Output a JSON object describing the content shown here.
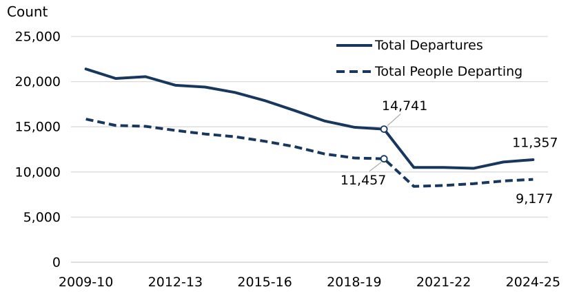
{
  "chart_data": {
    "type": "line",
    "title": "",
    "ylabel": "Count",
    "xlabel": "",
    "categories": [
      "2009-10",
      "2010-11",
      "2011-12",
      "2012-13",
      "2013-14",
      "2014-15",
      "2015-16",
      "2016-17",
      "2017-18",
      "2018-19",
      "2019-20",
      "2020-21",
      "2021-22",
      "2022-23",
      "2023-24",
      "2024-25"
    ],
    "x_axis_shown_ticks": [
      "2009-10",
      "2012-13",
      "2015-16",
      "2018-19",
      "2021-22",
      "2024-25"
    ],
    "series": [
      {
        "name": "Total Departures",
        "line_style": "solid",
        "color": "#17375e",
        "values": [
          21400,
          20350,
          20550,
          19600,
          19400,
          18800,
          17900,
          16800,
          15650,
          14950,
          14741,
          10500,
          10500,
          10400,
          11100,
          11357
        ]
      },
      {
        "name": "Total People Departing",
        "line_style": "dashed",
        "color": "#17375e",
        "values": [
          15850,
          15150,
          15050,
          14600,
          14200,
          13900,
          13400,
          12800,
          12000,
          11550,
          11457,
          8400,
          8500,
          8700,
          9000,
          9177
        ]
      }
    ],
    "ylim": [
      0,
      25000
    ],
    "y_ticks": [
      {
        "value": 0,
        "label": "0"
      },
      {
        "value": 5000,
        "label": "5,000"
      },
      {
        "value": 10000,
        "label": "10,000"
      },
      {
        "value": 15000,
        "label": "15,000"
      },
      {
        "value": 20000,
        "label": "20,000"
      },
      {
        "value": 25000,
        "label": "25,000"
      }
    ],
    "grid": true,
    "legend_position": "top-right",
    "annotations": [
      {
        "series": "Total Departures",
        "category": "2019-20",
        "label": "14,741",
        "marker": "open-circle",
        "placement": "above-right",
        "leader_line": true
      },
      {
        "series": "Total People Departing",
        "category": "2019-20",
        "label": "11,457",
        "marker": "open-circle",
        "placement": "below-left",
        "leader_line": true
      },
      {
        "series": "Total Departures",
        "category": "2024-25",
        "label": "11,357",
        "marker": "none",
        "placement": "above",
        "leader_line": false
      },
      {
        "series": "Total People Departing",
        "category": "2024-25",
        "label": "9,177",
        "marker": "none",
        "placement": "below",
        "leader_line": false
      }
    ],
    "colors": {
      "line": "#17375e",
      "gridline": "#d9d9d9",
      "axis_line": "#c9c9c9",
      "leader_line": "#a6a6a6",
      "text": "#000000",
      "marker_fill": "#ffffff"
    }
  }
}
